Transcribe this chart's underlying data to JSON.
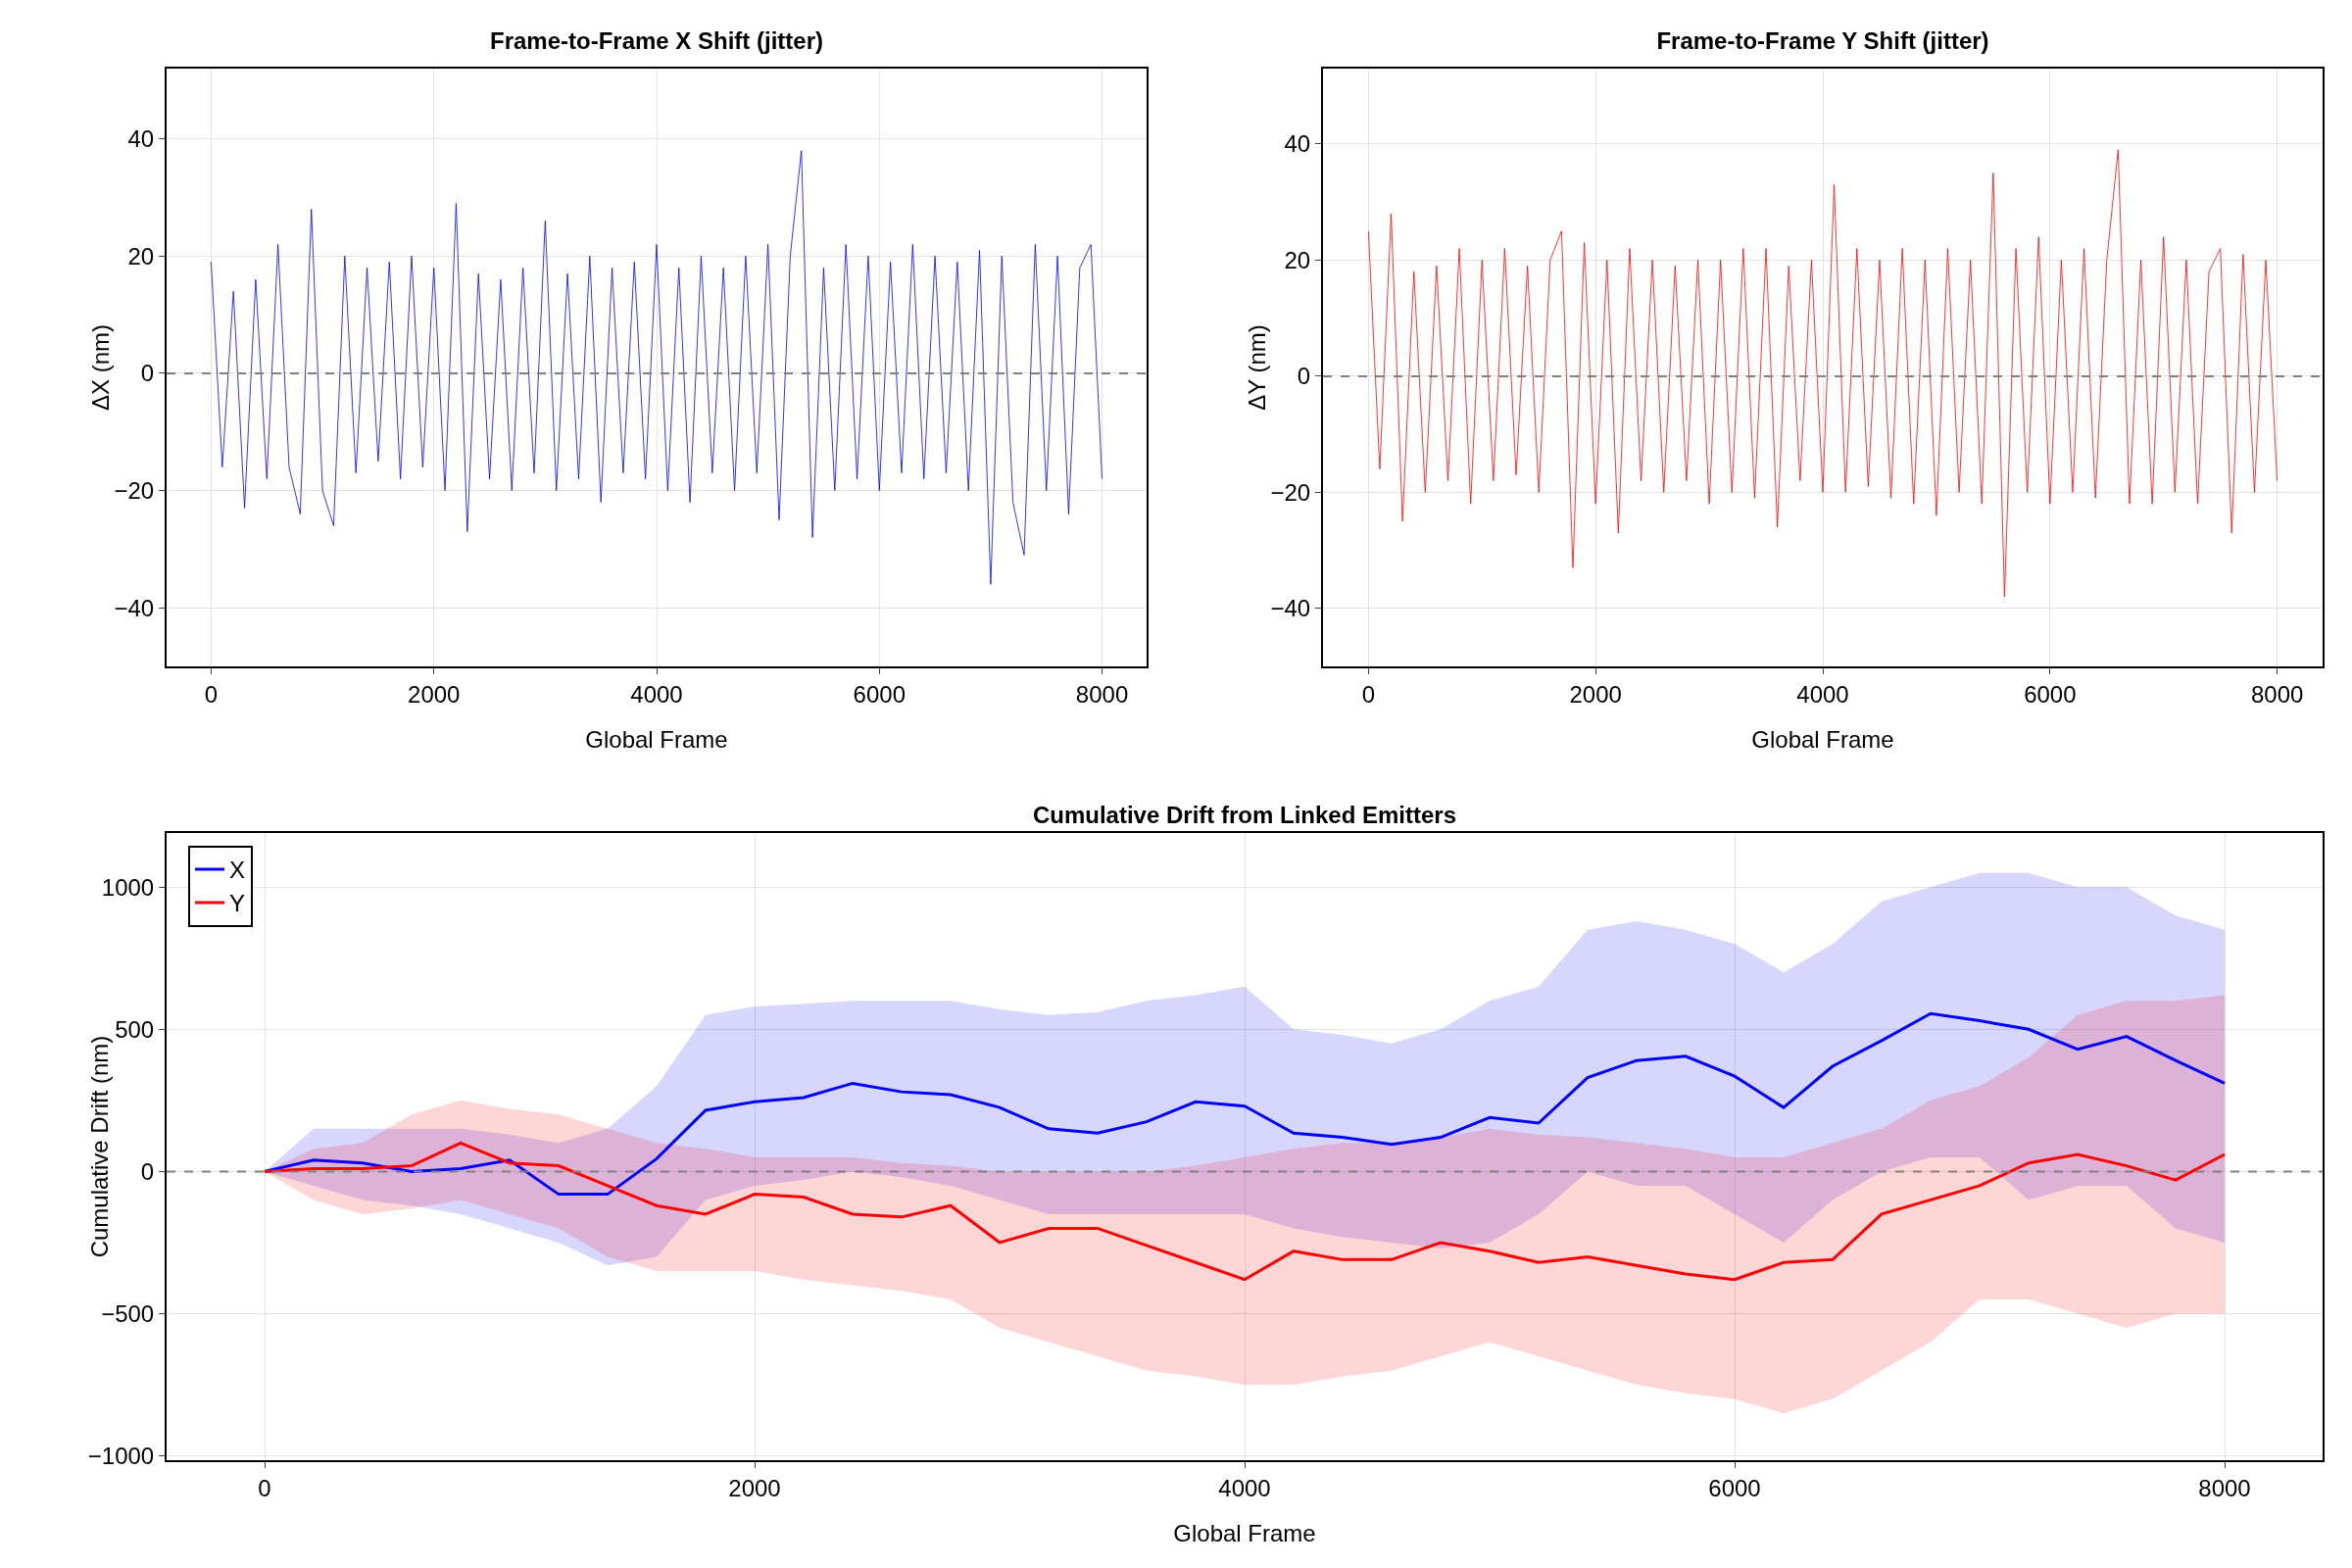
{
  "chart_data": [
    {
      "type": "line",
      "title": "Frame-to-Frame X Shift (jitter)",
      "xlabel": "Global Frame",
      "ylabel": "ΔX (nm)",
      "x": [
        0,
        100,
        200,
        300,
        400,
        500,
        600,
        700,
        800,
        900,
        1000,
        1100,
        1200,
        1300,
        1400,
        1500,
        1600,
        1700,
        1800,
        1900,
        2000,
        2100,
        2200,
        2300,
        2400,
        2500,
        2600,
        2700,
        2800,
        2900,
        3000,
        3100,
        3200,
        3300,
        3400,
        3500,
        3600,
        3700,
        3800,
        3900,
        4000,
        4100,
        4200,
        4300,
        4400,
        4500,
        4600,
        4700,
        4800,
        4900,
        5000,
        5100,
        5200,
        5300,
        5400,
        5500,
        5600,
        5700,
        5800,
        5900,
        6000,
        6100,
        6200,
        6300,
        6400,
        6500,
        6600,
        6700,
        6800,
        6900,
        7000,
        7100,
        7200,
        7300,
        7400,
        7500,
        7600,
        7700,
        7800,
        7900,
        8000
      ],
      "series": [
        {
          "color": "#0000ff",
          "values": [
            19,
            -16,
            14,
            -23,
            16,
            -18,
            22,
            -16,
            -24,
            28,
            -20,
            -26,
            20,
            -17,
            18,
            -15,
            19,
            -18,
            20,
            -16,
            18,
            -20,
            29,
            -27,
            17,
            -18,
            16,
            -20,
            18,
            -17,
            26,
            -20,
            17,
            -18,
            20,
            -22,
            18,
            -17,
            19,
            -18,
            22,
            -20,
            18,
            -22,
            20,
            -17,
            18,
            -20,
            20,
            -17,
            22,
            -25,
            20,
            38,
            -28,
            18,
            -20,
            22,
            -18,
            20,
            -20,
            19,
            -17,
            22,
            -18,
            20,
            -17,
            19,
            -20,
            21,
            -36,
            20,
            -22,
            -31,
            22,
            -20,
            20,
            -24,
            18,
            22,
            -18
          ]
        }
      ],
      "xlim": [
        -400,
        8400
      ],
      "ylim": [
        -50,
        52
      ],
      "xticks": [
        0,
        2000,
        4000,
        6000,
        8000
      ],
      "yticks": [
        {
          "value": -40,
          "label": "−40"
        },
        {
          "value": -20,
          "label": "−20"
        },
        0,
        20,
        40
      ],
      "grid": true,
      "ref_lines": [
        {
          "axis": "y",
          "value": 0,
          "color": "#808080",
          "line_style": "dashed"
        }
      ]
    },
    {
      "type": "line",
      "title": "Frame-to-Frame Y Shift (jitter)",
      "xlabel": "Global Frame",
      "ylabel": "ΔY (nm)",
      "x": [
        0,
        100,
        200,
        300,
        400,
        500,
        600,
        700,
        800,
        900,
        1000,
        1100,
        1200,
        1300,
        1400,
        1500,
        1600,
        1700,
        1800,
        1900,
        2000,
        2100,
        2200,
        2300,
        2400,
        2500,
        2600,
        2700,
        2800,
        2900,
        3000,
        3100,
        3200,
        3300,
        3400,
        3500,
        3600,
        3700,
        3800,
        3900,
        4000,
        4100,
        4200,
        4300,
        4400,
        4500,
        4600,
        4700,
        4800,
        4900,
        5000,
        5100,
        5200,
        5300,
        5400,
        5500,
        5600,
        5700,
        5800,
        5900,
        6000,
        6100,
        6200,
        6300,
        6400,
        6500,
        6600,
        6700,
        6800,
        6900,
        7000,
        7100,
        7200,
        7300,
        7400,
        7500,
        7600,
        7700,
        7800,
        7900,
        8000
      ],
      "series": [
        {
          "color": "#ff0000",
          "values": [
            25,
            -16,
            28,
            -25,
            18,
            -20,
            19,
            -18,
            22,
            -22,
            20,
            -18,
            22,
            -17,
            19,
            -20,
            20,
            25,
            -33,
            23,
            -22,
            20,
            -27,
            22,
            -18,
            20,
            -20,
            19,
            -18,
            20,
            -22,
            20,
            -20,
            22,
            -21,
            22,
            -26,
            19,
            -18,
            20,
            -20,
            33,
            -20,
            22,
            -19,
            20,
            -21,
            22,
            -22,
            20,
            -24,
            22,
            -20,
            20,
            -22,
            35,
            -38,
            22,
            -20,
            24,
            -22,
            20,
            -20,
            22,
            -21,
            20,
            39,
            -22,
            20,
            -22,
            24,
            -20,
            20,
            -22,
            18,
            22,
            -27,
            21,
            -20,
            20,
            -18
          ]
        }
      ],
      "xlim": [
        -400,
        8400
      ],
      "ylim": [
        -50,
        53
      ],
      "xticks": [
        0,
        2000,
        4000,
        6000,
        8000
      ],
      "yticks": [
        {
          "value": -40,
          "label": "−40"
        },
        {
          "value": -20,
          "label": "−20"
        },
        0,
        20,
        40
      ],
      "grid": true,
      "ref_lines": [
        {
          "axis": "y",
          "value": 0,
          "color": "#808080",
          "line_style": "dashed"
        }
      ]
    },
    {
      "type": "line",
      "title": "Cumulative Drift from Linked Emitters",
      "xlabel": "Global Frame",
      "ylabel": "Cumulative Drift (nm)",
      "x": [
        0,
        200,
        400,
        600,
        800,
        1000,
        1200,
        1400,
        1600,
        1800,
        2000,
        2200,
        2400,
        2600,
        2800,
        3000,
        3200,
        3400,
        3600,
        3800,
        4000,
        4200,
        4400,
        4600,
        4800,
        5000,
        5200,
        5400,
        5600,
        5800,
        6000,
        6200,
        6400,
        6600,
        6800,
        7000,
        7200,
        7400,
        7600,
        7800,
        8000
      ],
      "series": [
        {
          "name": "X",
          "color": "#0000ff",
          "values": [
            0,
            40,
            30,
            0,
            10,
            40,
            -80,
            -80,
            45,
            215,
            245,
            260,
            310,
            280,
            270,
            225,
            150,
            135,
            175,
            245,
            230,
            135,
            120,
            95,
            120,
            190,
            170,
            330,
            390,
            405,
            335,
            225,
            370,
            460,
            555,
            530,
            500,
            430,
            475,
            390,
            310
          ],
          "upper": [
            0,
            150,
            150,
            150,
            150,
            130,
            100,
            150,
            300,
            550,
            580,
            590,
            600,
            600,
            600,
            570,
            550,
            560,
            600,
            620,
            650,
            500,
            480,
            450,
            500,
            600,
            650,
            850,
            880,
            850,
            800,
            700,
            800,
            950,
            1000,
            1050,
            1050,
            1000,
            1000,
            900,
            850
          ],
          "lower": [
            0,
            -50,
            -100,
            -120,
            -150,
            -200,
            -250,
            -330,
            -300,
            -100,
            -50,
            -30,
            0,
            -20,
            -50,
            -100,
            -150,
            -150,
            -150,
            -150,
            -150,
            -200,
            -230,
            -250,
            -270,
            -250,
            -150,
            0,
            -50,
            -50,
            -150,
            -250,
            -100,
            0,
            50,
            50,
            -100,
            -50,
            -50,
            -200,
            -250
          ]
        },
        {
          "name": "Y",
          "color": "#ff0000",
          "values": [
            0,
            10,
            10,
            20,
            100,
            30,
            20,
            -50,
            -120,
            -150,
            -80,
            -90,
            -150,
            -160,
            -120,
            -250,
            -200,
            -200,
            -260,
            -320,
            -380,
            -280,
            -310,
            -310,
            -250,
            -280,
            -320,
            -300,
            -330,
            -360,
            -380,
            -320,
            -310,
            -150,
            -100,
            -50,
            30,
            60,
            20,
            -30,
            60
          ],
          "upper": [
            0,
            80,
            100,
            200,
            250,
            220,
            200,
            150,
            100,
            80,
            50,
            50,
            50,
            30,
            20,
            0,
            0,
            0,
            0,
            20,
            50,
            80,
            100,
            100,
            120,
            150,
            130,
            120,
            100,
            80,
            50,
            50,
            100,
            150,
            250,
            300,
            400,
            550,
            600,
            600,
            620
          ],
          "lower": [
            0,
            -100,
            -150,
            -130,
            -100,
            -150,
            -200,
            -300,
            -350,
            -350,
            -350,
            -380,
            -400,
            -420,
            -450,
            -550,
            -600,
            -650,
            -700,
            -720,
            -750,
            -750,
            -720,
            -700,
            -650,
            -600,
            -650,
            -700,
            -750,
            -780,
            -800,
            -850,
            -800,
            -700,
            -600,
            -450,
            -450,
            -500,
            -550,
            -500,
            -500
          ]
        }
      ],
      "xlim": [
        -400,
        8400
      ],
      "ylim": [
        -1015,
        1190
      ],
      "xticks": [
        0,
        2000,
        4000,
        6000,
        8000
      ],
      "yticks": [
        {
          "value": -1000,
          "label": "−1000"
        },
        {
          "value": -500,
          "label": "−500"
        },
        0,
        500,
        1000
      ],
      "grid": true,
      "legend": "top left",
      "ref_lines": [
        {
          "axis": "y",
          "value": 0,
          "color": "#808080",
          "line_style": "dashed"
        }
      ]
    }
  ]
}
